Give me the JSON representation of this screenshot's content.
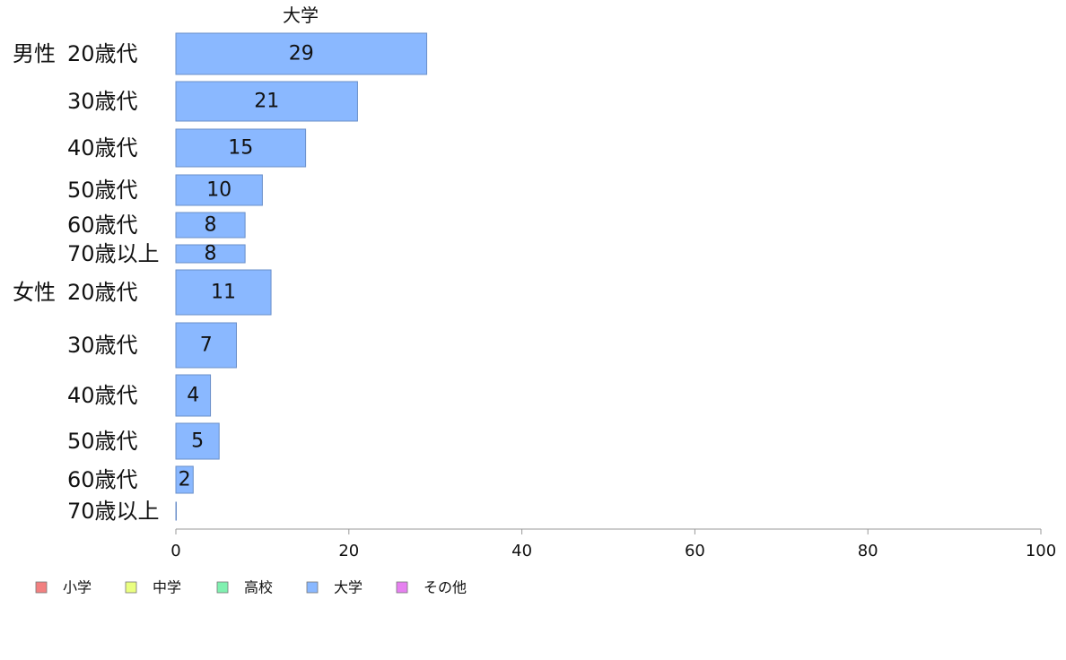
{
  "chart_data": {
    "type": "bar",
    "orientation": "horizontal",
    "title": "大学",
    "xlim": [
      0,
      100
    ],
    "x_ticks": [
      0,
      20,
      40,
      60,
      80,
      100
    ],
    "grid": false,
    "legend_position": "bottom-left",
    "groups": [
      {
        "name": "男性",
        "categories": [
          "20歳代",
          "30歳代",
          "40歳代",
          "50歳代",
          "60歳代",
          "70歳以上"
        ]
      },
      {
        "name": "女性",
        "categories": [
          "20歳代",
          "30歳代",
          "40歳代",
          "50歳代",
          "60歳代",
          "70歳以上"
        ]
      }
    ],
    "series": [
      {
        "name": "大学",
        "values": [
          29,
          21,
          15,
          10,
          8,
          8,
          11,
          7,
          4,
          5,
          2,
          0
        ]
      }
    ],
    "legend": [
      {
        "label": "小学",
        "color": "#f28080"
      },
      {
        "label": "中学",
        "color": "#eaff80"
      },
      {
        "label": "高校",
        "color": "#80f0b0"
      },
      {
        "label": "大学",
        "color": "#8ab8ff"
      },
      {
        "label": "その他",
        "color": "#e680f0"
      }
    ],
    "bar_color": "#8ab8ff"
  }
}
